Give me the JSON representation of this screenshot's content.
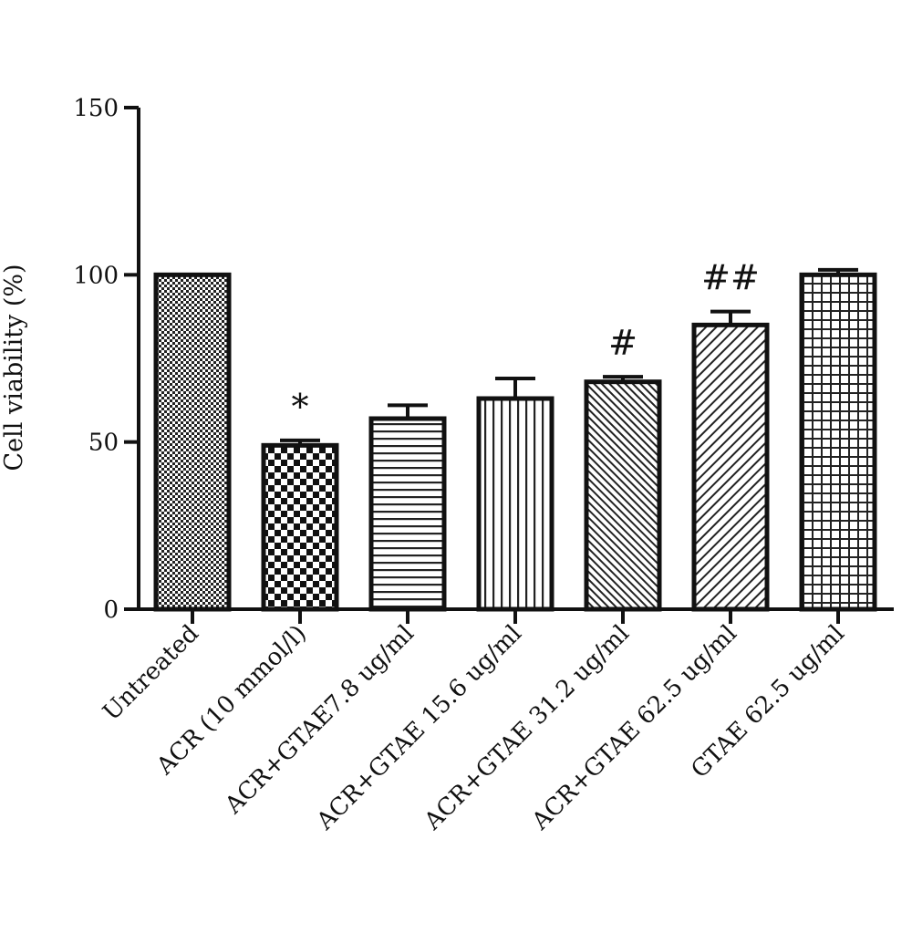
{
  "chart_data": {
    "type": "bar",
    "title": "",
    "xlabel": "",
    "ylabel": "Cell viability (%)",
    "ylim": [
      0,
      150
    ],
    "yticks": [
      0,
      50,
      100,
      150
    ],
    "grid": false,
    "legend": "none",
    "categories": [
      "Untreated",
      "ACR (10 mmol/l)",
      "ACR+GTAE7.8 ug/ml",
      "ACR+GTAE 15.6 ug/ml",
      "ACR+GTAE 31.2 ug/ml",
      "ACR+GTAE 62.5 ug/ml",
      "GTAE 62.5 ug/ml"
    ],
    "values": [
      100,
      49,
      57,
      63,
      68,
      85,
      100
    ],
    "errors": [
      0,
      1.5,
      4,
      6,
      1.5,
      4,
      1.5
    ],
    "annotations": [
      "",
      "*",
      "",
      "",
      "#",
      "##",
      ""
    ],
    "patterns": [
      "fine-dots",
      "checker",
      "horizontal-lines",
      "vertical-lines",
      "diagonal-fine",
      "diagonal-wide",
      "grid"
    ],
    "colors": {
      "stroke": "#111111",
      "fill": "#ffffff"
    }
  }
}
